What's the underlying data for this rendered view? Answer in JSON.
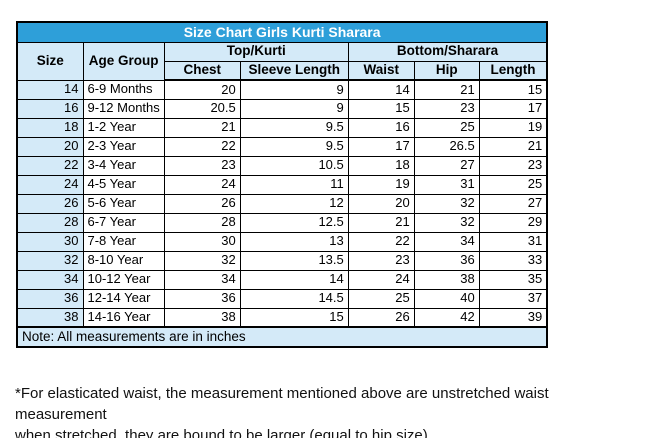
{
  "title": "Size Chart Girls Kurti Sharara",
  "table": {
    "headers": {
      "size": "Size",
      "age_group": "Age Group",
      "top_section": "Top/Kurti",
      "bottom_section": "Bottom/Sharara",
      "chest": "Chest",
      "sleeve_length": "Sleeve Length",
      "waist": "Waist",
      "hip": "Hip",
      "length": "Length"
    },
    "rows": [
      [
        "14",
        "6-9 Months",
        "20",
        "9",
        "14",
        "21",
        "15"
      ],
      [
        "16",
        "9-12 Months",
        "20.5",
        "9",
        "15",
        "23",
        "17"
      ],
      [
        "18",
        "1-2 Year",
        "21",
        "9.5",
        "16",
        "25",
        "19"
      ],
      [
        "20",
        "2-3 Year",
        "22",
        "9.5",
        "17",
        "26.5",
        "21"
      ],
      [
        "22",
        "3-4 Year",
        "23",
        "10.5",
        "18",
        "27",
        "23"
      ],
      [
        "24",
        "4-5 Year",
        "24",
        "11",
        "19",
        "31",
        "25"
      ],
      [
        "26",
        "5-6 Year",
        "26",
        "12",
        "20",
        "32",
        "27"
      ],
      [
        "28",
        "6-7 Year",
        "28",
        "12.5",
        "21",
        "32",
        "29"
      ],
      [
        "30",
        "7-8 Year",
        "30",
        "13",
        "22",
        "34",
        "31"
      ],
      [
        "32",
        "8-10 Year",
        "32",
        "13.5",
        "23",
        "36",
        "33"
      ],
      [
        "34",
        "10-12 Year",
        "34",
        "14",
        "24",
        "38",
        "35"
      ],
      [
        "36",
        "12-14 Year",
        "36",
        "14.5",
        "25",
        "40",
        "37"
      ],
      [
        "38",
        "14-16 Year",
        "38",
        "15",
        "26",
        "42",
        "39"
      ]
    ],
    "note": "Note: All measurements are in inches"
  },
  "footnote": {
    "line1": "*For elasticated waist, the measurement mentioned above are unstretched waist measurement",
    "line2": "when stretched, they are bound to be larger (equal to hip size)"
  },
  "colors": {
    "title_bg": "#2E9FD9",
    "header_bg": "#D4EAF8",
    "border": "#000000",
    "title_text": "#FFFFFF"
  }
}
